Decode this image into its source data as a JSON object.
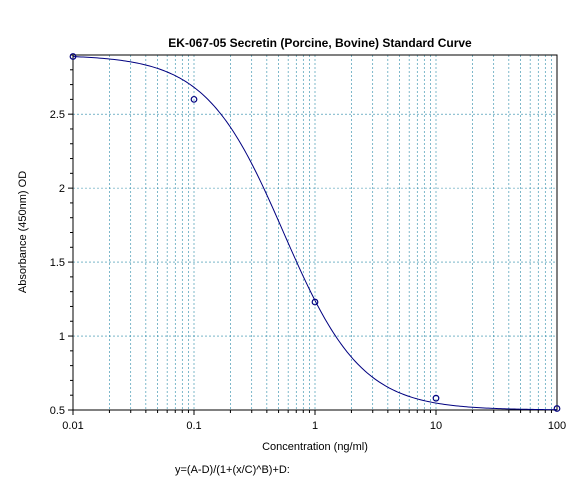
{
  "chart_data": {
    "type": "scatter",
    "title": "EK-067-05 Secretin (Porcine, Bovine) Standard Curve",
    "xlabel": "Concentration (ng/ml)",
    "ylabel": "Absorbance (450nm) OD",
    "x_scale": "log",
    "xlim": [
      0.01,
      100
    ],
    "ylim": [
      0.5,
      2.9
    ],
    "x_ticks": [
      "0.01",
      "0.1",
      "1",
      "10",
      "100"
    ],
    "y_ticks": [
      "0.5",
      "1",
      "1.5",
      "2",
      "2.5"
    ],
    "grid": true,
    "series": [
      {
        "points": [
          {
            "x": 0.01,
            "y": 2.89
          },
          {
            "x": 0.1,
            "y": 2.6
          },
          {
            "x": 1,
            "y": 1.23
          },
          {
            "x": 10,
            "y": 0.58
          },
          {
            "x": 100,
            "y": 0.51
          }
        ],
        "fit": "4PL"
      }
    ],
    "formula": "y=(A-D)/(1+(x/C)^B)+D:",
    "colors": {
      "curve": "#000080",
      "grid": "#2a8aa8",
      "points": "#000080"
    }
  }
}
